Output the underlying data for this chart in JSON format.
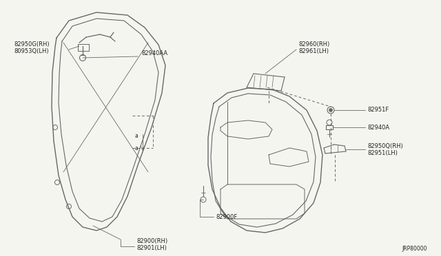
{
  "bg_color": "#f5f5f0",
  "line_color": "#666666",
  "text_color": "#222222",
  "diagram_id": "JRP80000",
  "figsize": [
    6.4,
    3.72
  ],
  "dpi": 100,
  "labels": {
    "top_left_1": "82950G(RH)",
    "top_left_2": "80953Q(LH)",
    "top_mid": "82940AA",
    "top_right_1": "82960(RH)",
    "top_right_2": "82961(LH)",
    "mid_right_1": "82951F",
    "mid_right_2": "82940A",
    "mid_right_3": "82950Q(RH)",
    "mid_right_4": "82951(LH)",
    "lower_mid": "82900F",
    "bot_left_1": "82900(RH)",
    "bot_left_2": "82901(LH)"
  }
}
